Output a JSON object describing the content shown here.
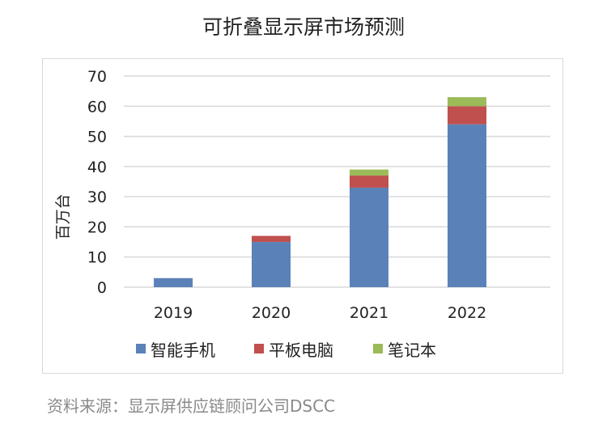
{
  "title": "可折叠显示屏市场预测",
  "source": "资料来源：显示屏供应链顾问公司DSCC",
  "chart_data": {
    "type": "bar",
    "stacked": true,
    "title": "可折叠显示屏市场预测",
    "ylabel": "百万台",
    "xlabel": "",
    "ylim": [
      0,
      70
    ],
    "yticks": [
      0,
      10,
      20,
      30,
      40,
      50,
      60,
      70
    ],
    "categories": [
      "2019",
      "2020",
      "2021",
      "2022"
    ],
    "grid": true,
    "legend": "bottom",
    "series": [
      {
        "name": "智能手机",
        "color": "#5b82b8",
        "values": [
          3,
          15,
          33,
          54
        ]
      },
      {
        "name": "平板电脑",
        "color": "#c0504d",
        "values": [
          0,
          2,
          4,
          6
        ]
      },
      {
        "name": "笔记本",
        "color": "#9bbb59",
        "values": [
          0,
          0,
          2,
          3
        ]
      }
    ]
  }
}
